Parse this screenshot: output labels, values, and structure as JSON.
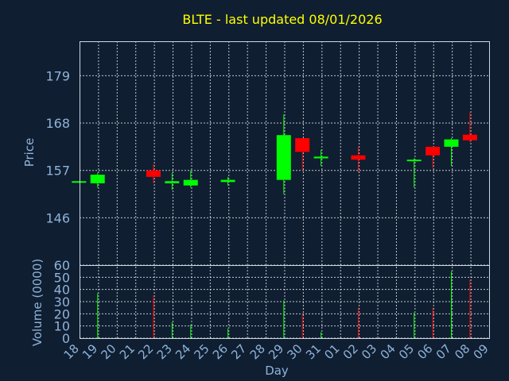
{
  "title": "BLTE - last updated 08/01/2026",
  "colors": {
    "background": "#0f1e31",
    "grid": "#ffffff",
    "axis_text": "#8fb3d9",
    "title": "#ffff00",
    "up": "#00ff00",
    "down": "#ff0000"
  },
  "chart_data": [
    {
      "type": "candlestick",
      "ylabel": "Price",
      "yticks": [
        146,
        157,
        168,
        179
      ],
      "ylim": [
        135,
        187
      ],
      "grid": true,
      "categories": [
        "18",
        "19",
        "20",
        "21",
        "22",
        "23",
        "24",
        "25",
        "26",
        "27",
        "28",
        "29",
        "30",
        "31",
        "01",
        "02",
        "03",
        "04",
        "05",
        "06",
        "07",
        "08",
        "09"
      ],
      "candles": [
        {
          "day": "18",
          "open": 154.5,
          "high": 154.5,
          "low": 154.5,
          "close": 154.5
        },
        {
          "day": "19",
          "open": 154.0,
          "high": 156.5,
          "low": 153.0,
          "close": 156.0
        },
        {
          "day": "22",
          "open": 157.0,
          "high": 158.5,
          "low": 154.0,
          "close": 155.5
        },
        {
          "day": "23",
          "open": 154.0,
          "high": 156.5,
          "low": 152.5,
          "close": 154.5
        },
        {
          "day": "24",
          "open": 153.5,
          "high": 157.0,
          "low": 153.0,
          "close": 154.8
        },
        {
          "day": "26",
          "open": 154.3,
          "high": 155.5,
          "low": 153.5,
          "close": 154.8
        },
        {
          "day": "29",
          "open": 154.8,
          "high": 170.0,
          "low": 151.5,
          "close": 165.2
        },
        {
          "day": "30",
          "open": 164.5,
          "high": 164.5,
          "low": 157.0,
          "close": 161.3
        },
        {
          "day": "31",
          "open": 159.8,
          "high": 161.8,
          "low": 158.0,
          "close": 160.2
        },
        {
          "day": "02",
          "open": 160.5,
          "high": 162.5,
          "low": 156.5,
          "close": 159.5
        },
        {
          "day": "05",
          "open": 159.2,
          "high": 159.8,
          "low": 153.0,
          "close": 159.5
        },
        {
          "day": "06",
          "open": 162.5,
          "high": 162.5,
          "low": 157.5,
          "close": 160.5
        },
        {
          "day": "07",
          "open": 162.5,
          "high": 164.5,
          "low": 158.0,
          "close": 164.2
        },
        {
          "day": "08",
          "open": 165.3,
          "high": 170.5,
          "low": 163.5,
          "close": 164.0
        }
      ]
    },
    {
      "type": "bar",
      "ylabel": "Volume (0000)",
      "xlabel": "Day",
      "yticks": [
        0,
        10,
        20,
        30,
        40,
        50,
        60
      ],
      "ylim": [
        0,
        60
      ],
      "grid": true,
      "categories": [
        "18",
        "19",
        "20",
        "21",
        "22",
        "23",
        "24",
        "25",
        "26",
        "27",
        "28",
        "29",
        "30",
        "31",
        "01",
        "02",
        "03",
        "04",
        "05",
        "06",
        "07",
        "08",
        "09"
      ],
      "bars": [
        {
          "day": "18",
          "value": 0,
          "direction": "down"
        },
        {
          "day": "19",
          "value": 37,
          "direction": "up"
        },
        {
          "day": "22",
          "value": 35,
          "direction": "down"
        },
        {
          "day": "23",
          "value": 13,
          "direction": "up"
        },
        {
          "day": "24",
          "value": 11,
          "direction": "up"
        },
        {
          "day": "26",
          "value": 8,
          "direction": "up"
        },
        {
          "day": "29",
          "value": 31,
          "direction": "up"
        },
        {
          "day": "30",
          "value": 20,
          "direction": "down"
        },
        {
          "day": "31",
          "value": 5,
          "direction": "up"
        },
        {
          "day": "02",
          "value": 25,
          "direction": "down"
        },
        {
          "day": "05",
          "value": 21,
          "direction": "up"
        },
        {
          "day": "06",
          "value": 25,
          "direction": "down"
        },
        {
          "day": "07",
          "value": 55,
          "direction": "up"
        },
        {
          "day": "08",
          "value": 48,
          "direction": "down"
        }
      ]
    }
  ]
}
